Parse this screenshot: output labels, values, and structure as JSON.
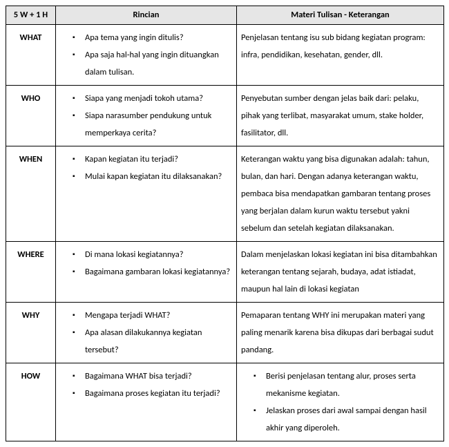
{
  "headers": {
    "col1": "5 W + 1 H",
    "col2": "Rincian",
    "col3": "Materi Tulisan - Keterangan"
  },
  "rows": [
    {
      "label": "WHAT",
      "rincian": [
        "Apa  tema yang ingin ditulis?",
        "Apa saja hal-hal yang ingin dituangkan dalam tulisan."
      ],
      "materi_type": "text",
      "materi": "Penjelasan tentang isu sub bidang kegiatan program: infra, pendidikan, kesehatan, gender, dll."
    },
    {
      "label": "WHO",
      "rincian": [
        "Siapa yang menjadi tokoh utama?",
        "Siapa narasumber pendukung untuk memperkaya cerita?"
      ],
      "materi_type": "text",
      "materi": "Penyebutan sumber dengan jelas baik dari: pelaku, pihak yang terlibat, masyarakat umum, stake holder, fasilitator, dll."
    },
    {
      "label": "WHEN",
      "rincian": [
        "Kapan kegiatan itu terjadi?",
        "Mulai kapan kegiatan itu dilaksanakan?"
      ],
      "materi_type": "text",
      "materi": "Keterangan waktu yang bisa digunakan adalah: tahun, bulan,  dan hari. Dengan adanya keterangan waktu, pembaca bisa mendapatkan gambaran tentang proses yang berjalan dalam kurun waktu tersebut  yakni sebelum dan setelah kegiatan dilaksanakan."
    },
    {
      "label": "WHERE",
      "rincian": [
        "Di mana lokasi kegiatannya?",
        "Bagaimana gambaran lokasi kegiatannya?"
      ],
      "materi_type": "text",
      "materi": "Dalam menjelaskan lokasi kegiatan ini bisa ditambahkan keterangan tentang sejarah, budaya, adat istiadat, maupun hal lain di lokasi kegiatan"
    },
    {
      "label": "WHY",
      "rincian": [
        "Mengapa terjadi WHAT?",
        "Apa alasan dilakukannya kegiatan tersebut?"
      ],
      "materi_type": "text",
      "materi": "Pemaparan tentang WHY ini merupakan materi yang paling menarik karena bisa dikupas dari berbagai sudut pandang."
    },
    {
      "label": "HOW",
      "rincian": [
        "Bagaimana WHAT bisa terjadi?",
        "Bagaimana proses kegiatan itu terjadi?"
      ],
      "materi_type": "list",
      "materi_list": [
        "Berisi penjelasan tentang alur, proses serta mekanisme kegiatan.",
        "Jelaskan proses dari awal sampai dengan hasil akhir yang diperoleh."
      ]
    }
  ]
}
